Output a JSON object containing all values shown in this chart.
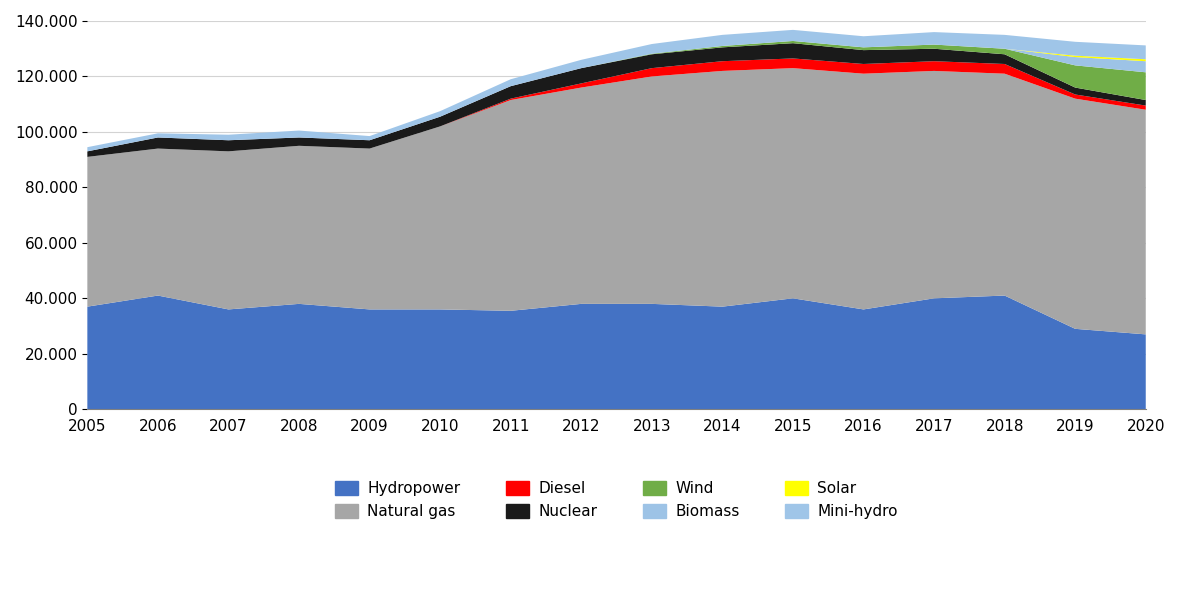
{
  "years": [
    2005,
    2006,
    2007,
    2008,
    2009,
    2010,
    2011,
    2012,
    2013,
    2014,
    2015,
    2016,
    2017,
    2018,
    2019,
    2020
  ],
  "hydropower": [
    37000,
    41000,
    36000,
    38000,
    36000,
    36000,
    35500,
    38000,
    38000,
    37000,
    40000,
    36000,
    40000,
    41000,
    29000,
    27000
  ],
  "natural_gas": [
    54000,
    53000,
    57000,
    57000,
    58000,
    66000,
    76000,
    78000,
    82000,
    85000,
    83000,
    85000,
    82000,
    80000,
    83000,
    81000
  ],
  "diesel": [
    0,
    0,
    0,
    0,
    0,
    0,
    500,
    1500,
    3000,
    3500,
    3500,
    3500,
    3500,
    3500,
    1500,
    1500
  ],
  "nuclear": [
    2000,
    4000,
    4000,
    3000,
    3000,
    3500,
    4500,
    5500,
    5000,
    5000,
    5500,
    5000,
    4500,
    3500,
    2500,
    2000
  ],
  "wind": [
    0,
    0,
    0,
    0,
    0,
    0,
    0,
    0,
    200,
    500,
    800,
    1000,
    1500,
    2000,
    8000,
    10000
  ],
  "biomass": [
    0,
    0,
    0,
    0,
    0,
    0,
    0,
    0,
    0,
    0,
    0,
    0,
    0,
    0,
    3000,
    4000
  ],
  "solar": [
    0,
    0,
    0,
    0,
    0,
    0,
    0,
    0,
    0,
    0,
    0,
    0,
    0,
    0,
    500,
    700
  ],
  "mini_hydro": [
    1500,
    1500,
    2000,
    2500,
    1500,
    2000,
    2500,
    3000,
    3500,
    4000,
    4000,
    4000,
    4500,
    5000,
    5000,
    5000
  ],
  "color_hydropower": "#4472C4",
  "color_natural_gas": "#A6A6A6",
  "color_diesel": "#FF0000",
  "color_nuclear": "#1A1A1A",
  "color_wind": "#70AD47",
  "color_biomass": "#9DC3E6",
  "color_solar": "#FFFF00",
  "color_mini_hydro": "#9FC5E8",
  "ylim": [
    0,
    140000
  ],
  "yticks": [
    0,
    20000,
    40000,
    60000,
    80000,
    100000,
    120000,
    140000
  ],
  "background_color": "#FFFFFF",
  "legend_labels_row1": [
    "Hydropower",
    "Natural gas",
    "Diesel",
    "Nuclear"
  ],
  "legend_labels_row2": [
    "Wind",
    "Biomass",
    "Solar",
    "Mini-hydro"
  ],
  "legend_colors_row1": [
    "#4472C4",
    "#A6A6A6",
    "#FF0000",
    "#1A1A1A"
  ],
  "legend_colors_row2": [
    "#70AD47",
    "#9DC3E6",
    "#FFFF00",
    "#9FC5E8"
  ]
}
